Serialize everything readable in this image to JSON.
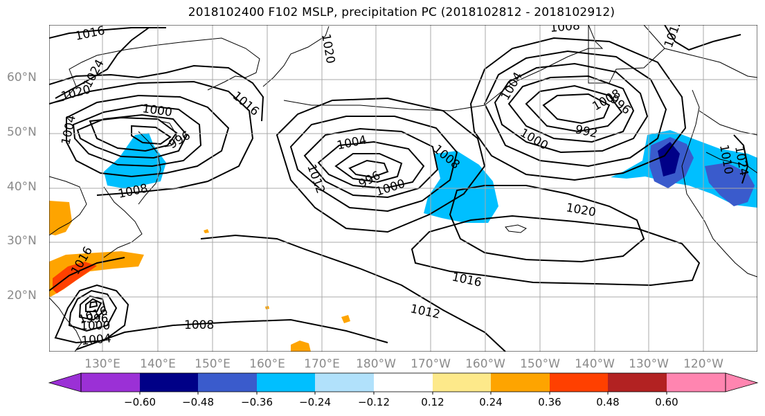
{
  "title": "2018102400 F102 MSLP, precipitation PC (2018102812 - 2018102912)",
  "lat_labels": [
    "60°N",
    "50°N",
    "40°N",
    "30°N",
    "20°N"
  ],
  "lon_labels": [
    "130°E",
    "140°E",
    "150°E",
    "160°E",
    "170°E",
    "180°W",
    "170°W",
    "160°W",
    "150°W",
    "140°W",
    "130°W",
    "120°W"
  ],
  "colorbar": {
    "colors": [
      "#9b30d6",
      "#000087",
      "#3a5bcc",
      "#00bfff",
      "#b1e1fb",
      "#ffffff",
      "#fde98a",
      "#fea400",
      "#ff4000",
      "#b22222",
      "#ff85b0"
    ],
    "ticks": [
      "−0.60",
      "−0.48",
      "−0.36",
      "−0.24",
      "−0.12",
      "0.12",
      "0.24",
      "0.36",
      "0.48",
      "0.60"
    ]
  },
  "isobar_labels": [
    "1016",
    "1020",
    "1024",
    "1020",
    "1004",
    "1000",
    "996",
    "1008",
    "1016",
    "1004",
    "996",
    "1000",
    "1008",
    "1012",
    "1008",
    "1004",
    "996",
    "992",
    "1000",
    "1020",
    "1016",
    "1012",
    "1016",
    "1008",
    "1016",
    "1000",
    "996",
    "1004",
    "1008",
    "1010",
    "1012",
    "1024"
  ]
}
